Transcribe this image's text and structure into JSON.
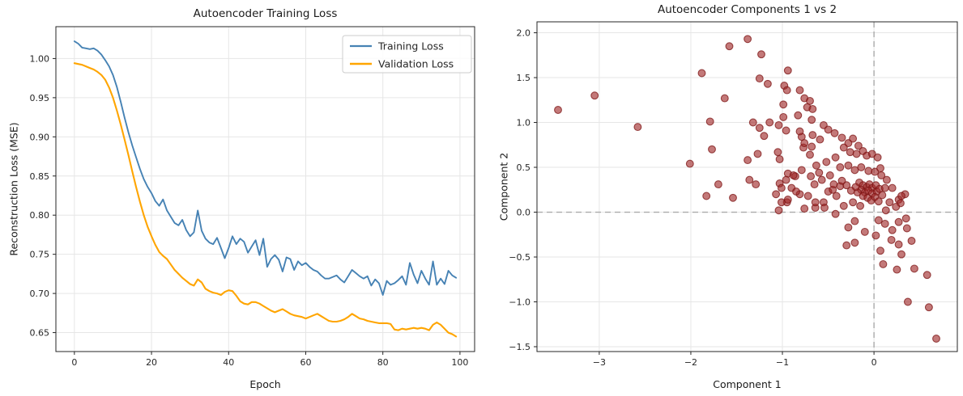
{
  "figure": {
    "background": "#ffffff",
    "grid_color": "#e6e6e6",
    "axis_color": "#262626",
    "refline_color": "#aaaaaa"
  },
  "chart_data": [
    {
      "type": "line",
      "title": "Autoencoder Training Loss",
      "xlabel": "Epoch",
      "ylabel": "Reconstruction Loss (MSE)",
      "xlim": [
        -4.8,
        103.8
      ],
      "ylim": [
        0.6258,
        1.0407
      ],
      "grid": true,
      "legend_position": "upper right",
      "xticks": [
        {
          "v": 0,
          "label": "0"
        },
        {
          "v": 20,
          "label": "20"
        },
        {
          "v": 40,
          "label": "40"
        },
        {
          "v": 60,
          "label": "60"
        },
        {
          "v": 80,
          "label": "80"
        },
        {
          "v": 100,
          "label": "100"
        }
      ],
      "yticks": [
        {
          "v": 0.65,
          "label": "0.65"
        },
        {
          "v": 0.7,
          "label": "0.70"
        },
        {
          "v": 0.75,
          "label": "0.75"
        },
        {
          "v": 0.8,
          "label": "0.80"
        },
        {
          "v": 0.85,
          "label": "0.85"
        },
        {
          "v": 0.9,
          "label": "0.90"
        },
        {
          "v": 0.95,
          "label": "0.95"
        },
        {
          "v": 1.0,
          "label": "1.00"
        }
      ],
      "series": [
        {
          "name": "Training Loss",
          "color": "#4682B4",
          "width": 1.9,
          "values": [
            1.022,
            1.019,
            1.014,
            1.013,
            1.012,
            1.013,
            1.01,
            1.005,
            0.998,
            0.99,
            0.979,
            0.964,
            0.945,
            0.925,
            0.906,
            0.889,
            0.874,
            0.859,
            0.846,
            0.836,
            0.828,
            0.818,
            0.812,
            0.82,
            0.806,
            0.798,
            0.79,
            0.787,
            0.794,
            0.781,
            0.773,
            0.778,
            0.806,
            0.78,
            0.77,
            0.765,
            0.763,
            0.771,
            0.758,
            0.745,
            0.758,
            0.773,
            0.763,
            0.77,
            0.766,
            0.752,
            0.76,
            0.768,
            0.749,
            0.77,
            0.734,
            0.744,
            0.749,
            0.743,
            0.728,
            0.746,
            0.744,
            0.73,
            0.741,
            0.736,
            0.739,
            0.734,
            0.73,
            0.728,
            0.723,
            0.719,
            0.719,
            0.721,
            0.723,
            0.718,
            0.714,
            0.722,
            0.73,
            0.726,
            0.722,
            0.719,
            0.722,
            0.71,
            0.718,
            0.713,
            0.698,
            0.716,
            0.711,
            0.713,
            0.717,
            0.722,
            0.711,
            0.739,
            0.724,
            0.713,
            0.729,
            0.719,
            0.711,
            0.741,
            0.711,
            0.719,
            0.712,
            0.729,
            0.723,
            0.72
          ]
        },
        {
          "name": "Validation Loss",
          "color": "#FFA500",
          "width": 2.1,
          "values": [
            0.994,
            0.993,
            0.992,
            0.99,
            0.988,
            0.986,
            0.983,
            0.979,
            0.973,
            0.963,
            0.95,
            0.934,
            0.916,
            0.897,
            0.877,
            0.856,
            0.836,
            0.817,
            0.8,
            0.785,
            0.773,
            0.762,
            0.753,
            0.748,
            0.744,
            0.737,
            0.73,
            0.725,
            0.72,
            0.716,
            0.712,
            0.71,
            0.718,
            0.714,
            0.706,
            0.703,
            0.701,
            0.7,
            0.698,
            0.702,
            0.704,
            0.703,
            0.697,
            0.69,
            0.687,
            0.686,
            0.689,
            0.689,
            0.687,
            0.684,
            0.681,
            0.678,
            0.676,
            0.678,
            0.68,
            0.677,
            0.674,
            0.672,
            0.671,
            0.67,
            0.668,
            0.67,
            0.672,
            0.674,
            0.671,
            0.668,
            0.665,
            0.664,
            0.664,
            0.665,
            0.667,
            0.67,
            0.674,
            0.671,
            0.668,
            0.667,
            0.665,
            0.664,
            0.663,
            0.662,
            0.662,
            0.662,
            0.661,
            0.654,
            0.653,
            0.655,
            0.654,
            0.655,
            0.656,
            0.655,
            0.656,
            0.655,
            0.653,
            0.66,
            0.663,
            0.66,
            0.655,
            0.65,
            0.648,
            0.645
          ]
        }
      ]
    },
    {
      "type": "scatter",
      "title": "Autoencoder Components 1 vs 2",
      "xlabel": "Component 1",
      "ylabel": "Component 2",
      "xlim": [
        -3.68,
        0.91
      ],
      "ylim": [
        -1.554,
        2.122
      ],
      "grid": true,
      "marker": {
        "color": "#9e2626",
        "edge": "#7c1414",
        "radius": 4.4,
        "fill_opacity": 0.62,
        "edge_opacity": 0.75
      },
      "refline_x": 0,
      "refline_y": 0,
      "xticks": [
        {
          "v": -3,
          "label": "−3"
        },
        {
          "v": -2,
          "label": "−2"
        },
        {
          "v": -1,
          "label": "−1"
        },
        {
          "v": 0,
          "label": "0"
        }
      ],
      "yticks": [
        {
          "v": -1.5,
          "label": "−1.5"
        },
        {
          "v": -1.0,
          "label": "−1.0"
        },
        {
          "v": -0.5,
          "label": "−0.5"
        },
        {
          "v": 0.0,
          "label": "0.0"
        },
        {
          "v": 0.5,
          "label": "0.5"
        },
        {
          "v": 1.0,
          "label": "1.0"
        },
        {
          "v": 1.5,
          "label": "1.5"
        },
        {
          "v": 2.0,
          "label": "2.0"
        }
      ],
      "points": [
        [
          -3.45,
          1.14
        ],
        [
          -3.05,
          1.3
        ],
        [
          -2.58,
          0.95
        ],
        [
          -2.01,
          0.54
        ],
        [
          -1.88,
          1.55
        ],
        [
          -1.83,
          0.18
        ],
        [
          -1.79,
          1.01
        ],
        [
          -1.77,
          0.7
        ],
        [
          -1.7,
          0.31
        ],
        [
          -1.63,
          1.27
        ],
        [
          -1.58,
          1.85
        ],
        [
          -1.54,
          0.16
        ],
        [
          -1.38,
          1.93
        ],
        [
          -1.23,
          1.76
        ],
        [
          -1.25,
          1.49
        ],
        [
          -1.16,
          1.43
        ],
        [
          -0.98,
          1.41
        ],
        [
          -0.95,
          1.36
        ],
        [
          -0.94,
          1.58
        ],
        [
          -0.81,
          1.36
        ],
        [
          -1.32,
          1.0
        ],
        [
          -0.99,
          1.2
        ],
        [
          -0.76,
          1.27
        ],
        [
          -0.7,
          1.24
        ],
        [
          -0.73,
          1.17
        ],
        [
          -0.67,
          1.15
        ],
        [
          -0.99,
          1.06
        ],
        [
          -0.83,
          1.08
        ],
        [
          -1.25,
          0.94
        ],
        [
          -1.14,
          1.0
        ],
        [
          -1.04,
          0.97
        ],
        [
          -0.68,
          1.03
        ],
        [
          -0.67,
          0.86
        ],
        [
          -0.79,
          0.84
        ],
        [
          -1.2,
          0.85
        ],
        [
          -0.96,
          0.91
        ],
        [
          -1.38,
          0.58
        ],
        [
          -1.27,
          0.65
        ],
        [
          -1.05,
          0.67
        ],
        [
          -1.03,
          0.59
        ],
        [
          -0.77,
          0.72
        ],
        [
          -0.7,
          0.64
        ],
        [
          -1.36,
          0.36
        ],
        [
          -1.03,
          0.32
        ],
        [
          -0.94,
          0.43
        ],
        [
          -0.86,
          0.4
        ],
        [
          -0.81,
          0.9
        ],
        [
          -0.55,
          0.97
        ],
        [
          -0.5,
          0.92
        ],
        [
          -0.43,
          0.88
        ],
        [
          -0.59,
          0.81
        ],
        [
          -0.68,
          0.73
        ],
        [
          -0.76,
          0.77
        ],
        [
          -0.35,
          0.83
        ],
        [
          -0.28,
          0.77
        ],
        [
          -0.23,
          0.82
        ],
        [
          -0.17,
          0.74
        ],
        [
          -0.33,
          0.72
        ],
        [
          -0.26,
          0.67
        ],
        [
          -0.19,
          0.65
        ],
        [
          -0.12,
          0.68
        ],
        [
          -0.08,
          0.63
        ],
        [
          -0.02,
          0.65
        ],
        [
          0.04,
          0.61
        ],
        [
          -0.42,
          0.61
        ],
        [
          -0.52,
          0.56
        ],
        [
          -0.63,
          0.52
        ],
        [
          -0.79,
          0.47
        ],
        [
          -0.37,
          0.5
        ],
        [
          -0.28,
          0.52
        ],
        [
          -0.21,
          0.47
        ],
        [
          -0.14,
          0.5
        ],
        [
          -0.06,
          0.46
        ],
        [
          0.01,
          0.45
        ],
        [
          0.07,
          0.49
        ],
        [
          -0.48,
          0.41
        ],
        [
          -0.57,
          0.36
        ],
        [
          -0.65,
          0.31
        ],
        [
          -0.88,
          0.41
        ],
        [
          -0.96,
          0.36
        ],
        [
          -1.01,
          0.27
        ],
        [
          -1.07,
          0.2
        ],
        [
          -0.81,
          0.2
        ],
        [
          -0.72,
          0.18
        ],
        [
          -0.5,
          0.23
        ],
        [
          -0.41,
          0.18
        ],
        [
          -0.55,
          0.11
        ],
        [
          -0.64,
          0.05
        ],
        [
          -0.76,
          0.04
        ],
        [
          -0.95,
          0.11
        ],
        [
          -0.33,
          0.07
        ],
        [
          -0.23,
          0.11
        ],
        [
          -0.15,
          0.07
        ],
        [
          -1.29,
          0.31
        ],
        [
          -1.04,
          0.02
        ],
        [
          -1.01,
          0.11
        ],
        [
          -0.94,
          0.14
        ],
        [
          -0.9,
          0.27
        ],
        [
          -0.85,
          0.23
        ],
        [
          -0.64,
          0.11
        ],
        [
          -0.54,
          0.05
        ],
        [
          -0.45,
          0.25
        ],
        [
          -0.37,
          0.29
        ],
        [
          -0.16,
          0.33
        ],
        [
          -0.12,
          0.3
        ],
        [
          -0.08,
          0.28
        ],
        [
          -0.05,
          0.31
        ],
        [
          -0.02,
          0.27
        ],
        [
          0.02,
          0.3
        ],
        [
          -0.14,
          0.25
        ],
        [
          -0.1,
          0.22
        ],
        [
          -0.06,
          0.24
        ],
        [
          -0.02,
          0.21
        ],
        [
          0.03,
          0.23
        ],
        [
          0.06,
          0.26
        ],
        [
          -0.12,
          0.18
        ],
        [
          -0.07,
          0.16
        ],
        [
          -0.03,
          0.13
        ],
        [
          0.01,
          0.17
        ],
        [
          0.05,
          0.12
        ],
        [
          0.09,
          0.19
        ],
        [
          -0.18,
          0.22
        ],
        [
          -0.2,
          0.28
        ],
        [
          -0.25,
          0.24
        ],
        [
          -0.3,
          0.3
        ],
        [
          -0.35,
          0.35
        ],
        [
          -0.44,
          0.31
        ],
        [
          -0.6,
          0.44
        ],
        [
          -0.69,
          0.4
        ],
        [
          0.08,
          0.41
        ],
        [
          0.14,
          0.36
        ],
        [
          0.12,
          0.27
        ],
        [
          0.2,
          0.27
        ],
        [
          0.27,
          0.14
        ],
        [
          0.34,
          0.2
        ],
        [
          0.17,
          0.11
        ],
        [
          0.3,
          0.18
        ],
        [
          0.29,
          0.1
        ],
        [
          0.24,
          0.06
        ],
        [
          0.13,
          0.02
        ],
        [
          0.05,
          -0.09
        ],
        [
          0.12,
          -0.13
        ],
        [
          0.2,
          -0.2
        ],
        [
          0.27,
          -0.11
        ],
        [
          0.35,
          -0.07
        ],
        [
          0.36,
          -0.18
        ],
        [
          0.19,
          -0.31
        ],
        [
          0.27,
          -0.36
        ],
        [
          0.41,
          -0.32
        ],
        [
          0.07,
          -0.43
        ],
        [
          -0.21,
          -0.1
        ],
        [
          -0.28,
          -0.17
        ],
        [
          -0.21,
          -0.34
        ],
        [
          -0.3,
          -0.37
        ],
        [
          -0.42,
          -0.02
        ],
        [
          -0.1,
          -0.22
        ],
        [
          0.02,
          -0.26
        ],
        [
          0.1,
          -0.58
        ],
        [
          0.25,
          -0.64
        ],
        [
          0.44,
          -0.63
        ],
        [
          0.58,
          -0.7
        ],
        [
          0.37,
          -1.0
        ],
        [
          0.6,
          -1.06
        ],
        [
          0.68,
          -1.41
        ],
        [
          0.3,
          -0.47
        ]
      ]
    }
  ]
}
